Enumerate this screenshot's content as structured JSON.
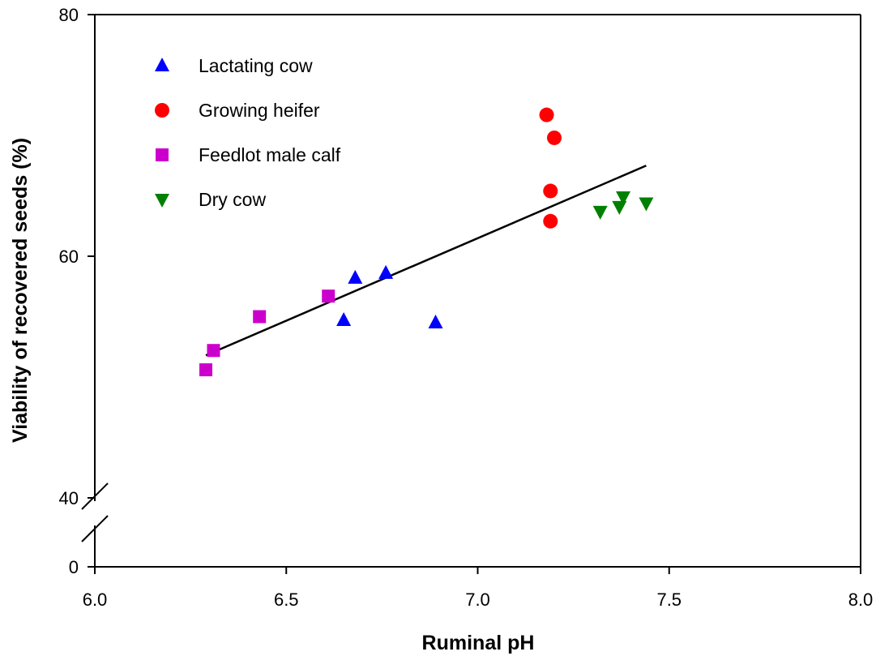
{
  "chart_data": {
    "type": "scatter",
    "title": "",
    "xlabel": "Ruminal pH",
    "ylabel": "Viability of recovered seeds (%)",
    "xlim": [
      6.0,
      8.0
    ],
    "ylim": [
      0,
      80
    ],
    "y_axis_break": [
      0,
      40
    ],
    "x_ticks": [
      "6.0",
      "6.5",
      "7.0",
      "7.5",
      "8.0"
    ],
    "y_ticks": [
      "0",
      "40",
      "60",
      "80"
    ],
    "grid": false,
    "legend_position": "top-left",
    "series": [
      {
        "name": "Lactating cow",
        "marker": "triangle-up",
        "color": "#0000ff",
        "points": [
          [
            6.65,
            54.7
          ],
          [
            6.68,
            58.2
          ],
          [
            6.76,
            58.6
          ],
          [
            6.89,
            54.5
          ]
        ]
      },
      {
        "name": "Growing heifer",
        "marker": "circle",
        "color": "#ff0000",
        "points": [
          [
            7.18,
            71.7
          ],
          [
            7.2,
            69.8
          ],
          [
            7.19,
            65.4
          ],
          [
            7.19,
            62.9
          ]
        ]
      },
      {
        "name": "Feedlot male calf",
        "marker": "square",
        "color": "#cc00cc",
        "points": [
          [
            6.29,
            50.6
          ],
          [
            6.31,
            52.2
          ],
          [
            6.43,
            55.0
          ],
          [
            6.61,
            56.7
          ]
        ]
      },
      {
        "name": "Dry cow",
        "marker": "triangle-down",
        "color": "#008000",
        "points": [
          [
            7.32,
            63.7
          ],
          [
            7.37,
            64.1
          ],
          [
            7.38,
            64.9
          ],
          [
            7.44,
            64.4
          ]
        ]
      }
    ],
    "regression_line": {
      "color": "#000000",
      "points": [
        [
          6.29,
          51.8
        ],
        [
          7.44,
          67.5
        ]
      ]
    }
  }
}
